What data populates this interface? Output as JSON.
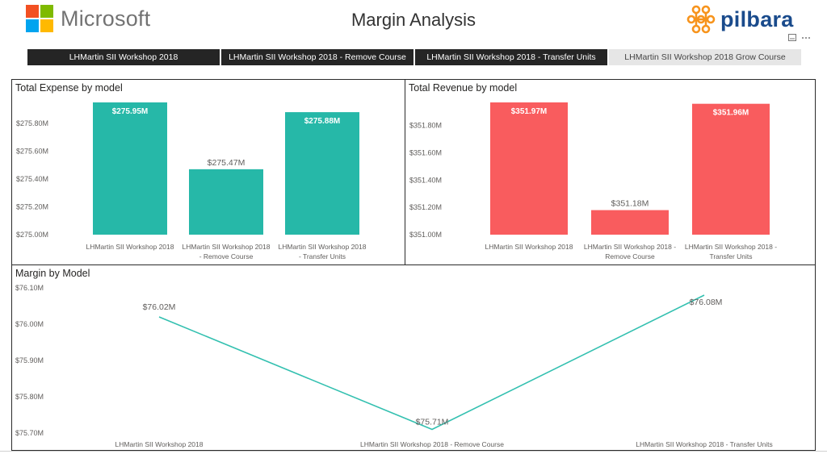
{
  "header": {
    "ms_logo_text": "Microsoft",
    "page_title": "Margin Analysis",
    "pilbara_logo_text": "pilbara",
    "ms_colors": [
      "#f25022",
      "#7fba00",
      "#00a4ef",
      "#ffb900"
    ],
    "pilbara_colors": {
      "mark": "#f7941d",
      "text": "#1a4b8c"
    },
    "icons": [
      "focus-mode-icon",
      "more-options-icon"
    ]
  },
  "tabs": [
    {
      "label": "LHMartin SII Workshop 2018",
      "active": true
    },
    {
      "label": "LHMartin SII Workshop 2018 - Remove Course",
      "active": true
    },
    {
      "label": "LHMartin SII Workshop 2018 - Transfer Units",
      "active": true
    },
    {
      "label": "LHMartin SII Workshop 2018 Grow Course",
      "active": false
    }
  ],
  "colors": {
    "expense": "#26b8a8",
    "revenue": "#f95c5e",
    "margin_line": "#33c0b0"
  },
  "chart_data": [
    {
      "type": "bar",
      "title": "Total Expense by model",
      "categories": [
        [
          "LHMartin SII Workshop 2018"
        ],
        [
          "LHMartin SII Workshop 2018",
          "- Remove Course"
        ],
        [
          "LHMartin SII Workshop 2018",
          "- Transfer Units"
        ]
      ],
      "values": [
        275.95,
        275.47,
        275.88
      ],
      "data_labels": [
        "$275.95M",
        "$275.47M",
        "$275.88M"
      ],
      "label_inside": [
        true,
        false,
        true
      ],
      "yticks": [
        275.0,
        275.2,
        275.4,
        275.6,
        275.8
      ],
      "ytick_labels": [
        "$275.00M",
        "$275.20M",
        "$275.40M",
        "$275.60M",
        "$275.80M"
      ],
      "ylim": [
        275.0,
        275.95
      ],
      "color": "#26b8a8"
    },
    {
      "type": "bar",
      "title": "Total Revenue by model",
      "categories": [
        [
          "LHMartin SII Workshop 2018"
        ],
        [
          "LHMartin SII Workshop 2018 -",
          "Remove Course"
        ],
        [
          "LHMartin SII Workshop 2018 -",
          "Transfer Units"
        ]
      ],
      "values": [
        351.97,
        351.18,
        351.96
      ],
      "data_labels": [
        "$351.97M",
        "$351.18M",
        "$351.96M"
      ],
      "label_inside": [
        true,
        false,
        true
      ],
      "yticks": [
        351.0,
        351.2,
        351.4,
        351.6,
        351.8
      ],
      "ytick_labels": [
        "$351.00M",
        "$351.20M",
        "$351.40M",
        "$351.60M",
        "$351.80M"
      ],
      "ylim": [
        351.0,
        351.97
      ],
      "color": "#f95c5e"
    },
    {
      "type": "line",
      "title": "Margin by Model",
      "categories": [
        "LHMartin SII Workshop 2018",
        "LHMartin SII Workshop 2018 - Remove Course",
        "LHMartin SII Workshop 2018 - Transfer Units"
      ],
      "values": [
        76.02,
        75.71,
        76.08
      ],
      "data_labels": [
        "$76.02M",
        "$75.71M",
        "$76.08M"
      ],
      "yticks": [
        75.7,
        75.8,
        75.9,
        76.0,
        76.1
      ],
      "ytick_labels": [
        "$75.70M",
        "$75.80M",
        "$75.90M",
        "$76.00M",
        "$76.10M"
      ],
      "ylim": [
        75.7,
        76.1
      ],
      "color": "#33c0b0"
    }
  ]
}
